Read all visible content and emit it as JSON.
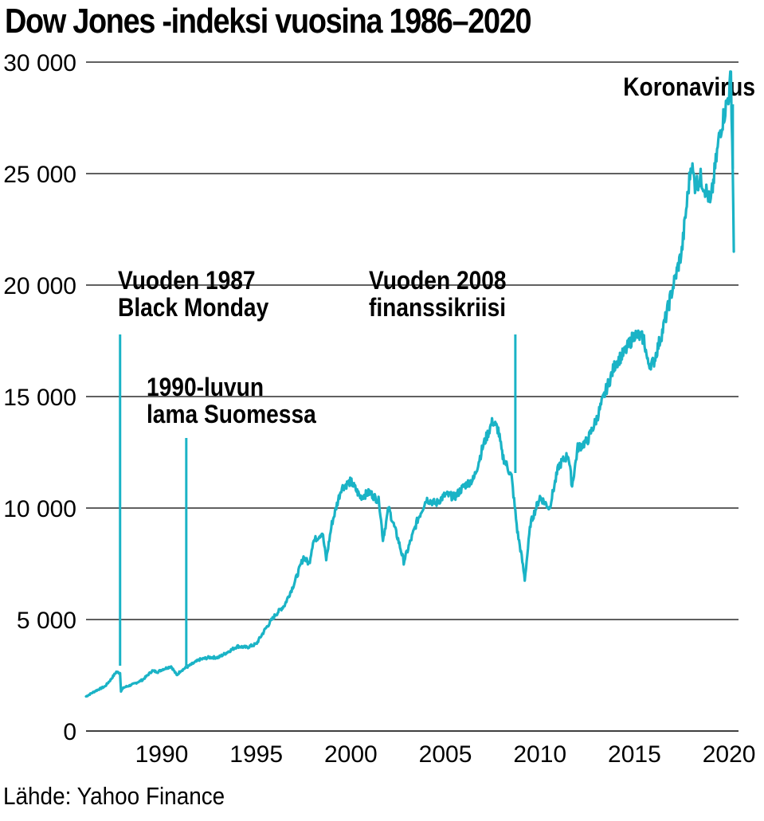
{
  "title": "Dow Jones -indeksi vuosina 1986–2020",
  "source": "Lähde: Yahoo Finance",
  "colors": {
    "line": "#1ab3c6",
    "grid": "#000000",
    "text": "#000000"
  },
  "chart_data": {
    "type": "line",
    "title": "Dow Jones -indeksi vuosina 1986–2020",
    "xlabel": "",
    "ylabel": "",
    "xlim": [
      1986,
      2020.5
    ],
    "ylim": [
      0,
      31000
    ],
    "grid": "horizontal",
    "y_ticks": [
      {
        "value": 0,
        "label": "0"
      },
      {
        "value": 5000,
        "label": "5 000"
      },
      {
        "value": 10000,
        "label": "10 000"
      },
      {
        "value": 15000,
        "label": "15 000"
      },
      {
        "value": 20000,
        "label": "20 000"
      },
      {
        "value": 25000,
        "label": "25 000"
      },
      {
        "value": 30000,
        "label": "30 000"
      }
    ],
    "x_ticks": [
      {
        "value": 1990,
        "label": "1990"
      },
      {
        "value": 1995,
        "label": "1995"
      },
      {
        "value": 2000,
        "label": "2000"
      },
      {
        "value": 2005,
        "label": "2005"
      },
      {
        "value": 2010,
        "label": "2010"
      },
      {
        "value": 2015,
        "label": "2015"
      },
      {
        "value": 2020,
        "label": "2020"
      }
    ],
    "series": [
      {
        "color": "#1ab3c6",
        "x": [
          1986.0,
          1986.5,
          1987.0,
          1987.3,
          1987.6,
          1987.8,
          1987.85,
          1988.0,
          1988.5,
          1989.0,
          1989.5,
          1989.8,
          1990.0,
          1990.5,
          1990.8,
          1991.0,
          1991.5,
          1992.0,
          1992.5,
          1993.0,
          1993.5,
          1994.0,
          1994.5,
          1995.0,
          1995.5,
          1996.0,
          1996.5,
          1997.0,
          1997.5,
          1997.8,
          1998.0,
          1998.5,
          1998.7,
          1999.0,
          1999.5,
          2000.0,
          2000.5,
          2001.0,
          2001.5,
          2001.7,
          2002.0,
          2002.5,
          2002.8,
          2003.0,
          2003.5,
          2004.0,
          2004.5,
          2005.0,
          2005.5,
          2006.0,
          2006.5,
          2007.0,
          2007.5,
          2007.8,
          2008.0,
          2008.5,
          2008.8,
          2009.0,
          2009.2,
          2009.5,
          2010.0,
          2010.5,
          2011.0,
          2011.5,
          2011.7,
          2012.0,
          2012.5,
          2013.0,
          2013.5,
          2014.0,
          2014.5,
          2015.0,
          2015.5,
          2015.7,
          2016.0,
          2016.5,
          2017.0,
          2017.5,
          2018.0,
          2018.2,
          2018.5,
          2018.9,
          2019.0,
          2019.5,
          2020.0,
          2020.1,
          2020.2,
          2020.25
        ],
        "y": [
          1550,
          1800,
          2000,
          2300,
          2650,
          2600,
          1800,
          1950,
          2100,
          2300,
          2700,
          2650,
          2750,
          2900,
          2500,
          2700,
          2950,
          3200,
          3300,
          3300,
          3550,
          3800,
          3750,
          3900,
          4600,
          5200,
          5650,
          6600,
          7800,
          7500,
          8500,
          8900,
          7700,
          9300,
          10900,
          11200,
          10500,
          10700,
          10300,
          8600,
          10000,
          8600,
          7600,
          8100,
          9400,
          10400,
          10200,
          10600,
          10500,
          11000,
          11300,
          12800,
          13900,
          13500,
          12400,
          11400,
          9000,
          8000,
          6800,
          9300,
          10500,
          10000,
          11900,
          12400,
          11000,
          12700,
          13000,
          14000,
          15300,
          16500,
          17000,
          17800,
          17600,
          16500,
          16500,
          18000,
          19800,
          21500,
          25500,
          24500,
          24800,
          24000,
          23500,
          26800,
          28600,
          29400,
          25000,
          21500
        ]
      }
    ],
    "annotations": [
      {
        "label_lines": [
          "Vuoden 1987",
          "Black Monday"
        ],
        "x": 1987.8
      },
      {
        "label_lines": [
          "1990-luvun",
          "lama Suomessa"
        ],
        "x": 1991.3
      },
      {
        "label_lines": [
          "Vuoden 2008",
          "finanssikriisi"
        ],
        "x": 2008.7
      },
      {
        "label_lines": [
          "Koronavirus"
        ],
        "x": 2020.2
      }
    ]
  }
}
